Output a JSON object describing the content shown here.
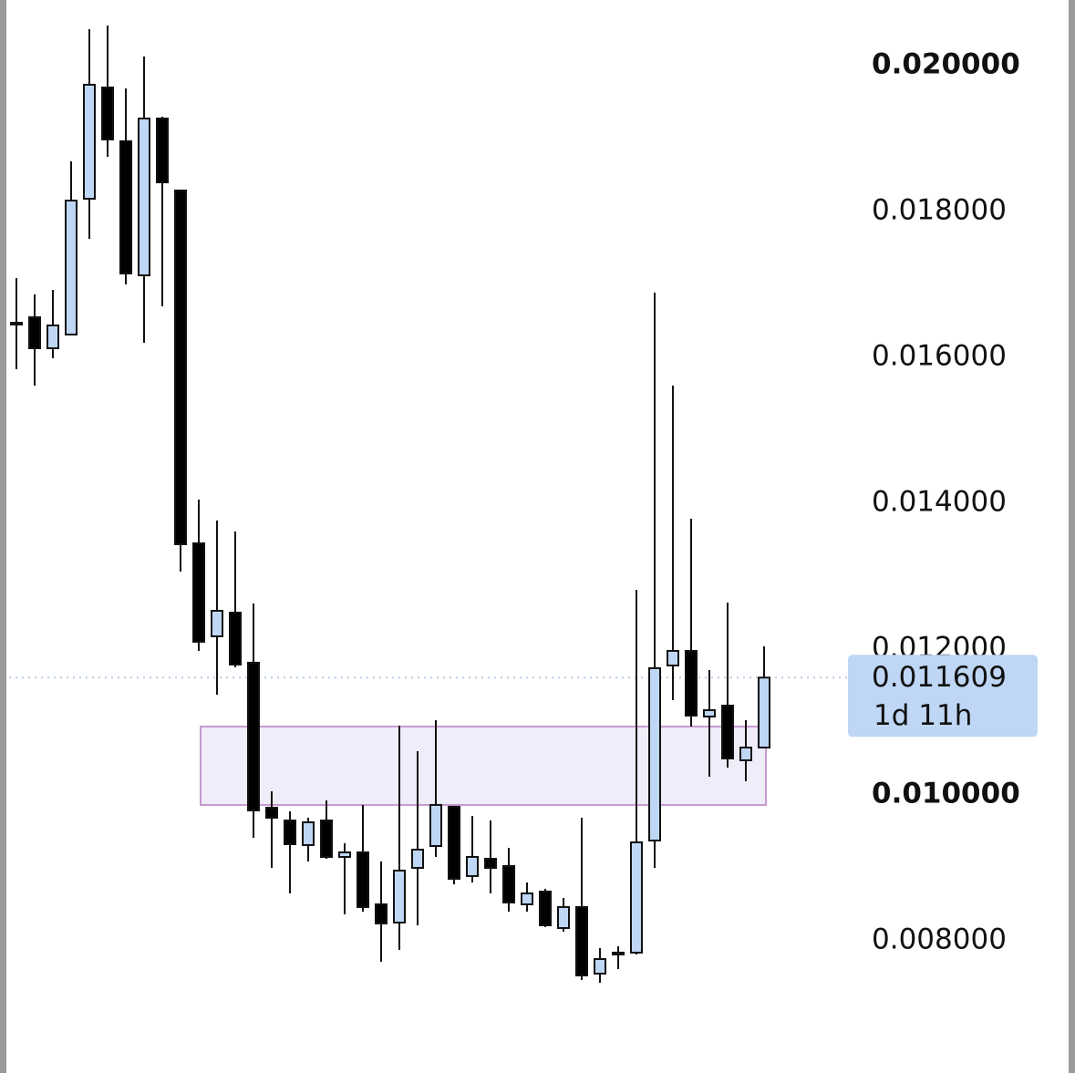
{
  "chart_data": {
    "type": "candlestick",
    "candles": {
      "open": [
        0.016475,
        0.01655,
        0.016125,
        0.016313,
        0.018175,
        0.0197,
        0.018963,
        0.017125,
        0.019275,
        0.018288,
        0.01345,
        0.012175,
        0.0125,
        0.011813,
        0.009825,
        0.00965,
        0.009313,
        0.00965,
        0.00915,
        0.009213,
        0.0085,
        0.00825,
        0.009,
        0.0093,
        0.009838,
        0.008888,
        0.009125,
        0.009025,
        0.0085,
        0.008675,
        0.008175,
        0.008463,
        0.00755,
        0.007838,
        0.007838,
        0.009375,
        0.011775,
        0.011975,
        0.011075,
        0.011225,
        0.010475,
        0.01065
      ],
      "high": [
        0.017088,
        0.016863,
        0.016925,
        0.018688,
        0.0205,
        0.02055,
        0.019688,
        0.020125,
        0.0193,
        0.018288,
        0.01405,
        0.013763,
        0.013613,
        0.012625,
        0.01005,
        0.009775,
        0.009688,
        0.009925,
        0.009338,
        0.009863,
        0.009088,
        0.01095,
        0.0106,
        0.011025,
        0.009838,
        0.009713,
        0.00965,
        0.009275,
        0.0088,
        0.008713,
        0.008588,
        0.009688,
        0.0079,
        0.007925,
        0.012813,
        0.016888,
        0.015613,
        0.013788,
        0.011713,
        0.012638,
        0.011025,
        0.012038
      ],
      "low": [
        0.015838,
        0.015613,
        0.015988,
        0.016313,
        0.017625,
        0.01875,
        0.017,
        0.0162,
        0.0167,
        0.013063,
        0.011975,
        0.011375,
        0.01175,
        0.009413,
        0.009,
        0.00865,
        0.009088,
        0.009125,
        0.008363,
        0.0084,
        0.007713,
        0.007875,
        0.008213,
        0.00915,
        0.008775,
        0.0088,
        0.00865,
        0.0084,
        0.0084,
        0.008188,
        0.008125,
        0.007463,
        0.007425,
        0.007613,
        0.007813,
        0.009,
        0.0113,
        0.010938,
        0.01025,
        0.010375,
        0.010188,
        0.01065
      ],
      "close": [
        0.016463,
        0.016125,
        0.016438,
        0.01815,
        0.019738,
        0.018988,
        0.01715,
        0.019275,
        0.0184,
        0.013438,
        0.0121,
        0.012525,
        0.011788,
        0.009788,
        0.009688,
        0.009325,
        0.009625,
        0.00915,
        0.009213,
        0.008463,
        0.008238,
        0.008963,
        0.00925,
        0.009863,
        0.00885,
        0.00915,
        0.009,
        0.008525,
        0.00865,
        0.008213,
        0.008463,
        0.007525,
        0.00775,
        0.007813,
        0.00935,
        0.011738,
        0.011975,
        0.011088,
        0.011163,
        0.0105,
        0.01065,
        0.011609
      ]
    },
    "up_color": "#bfd7f5",
    "down_color": "#000000",
    "ylim": [
      0.0061875,
      0.0209
    ],
    "yticks": [
      {
        "value": 0.02,
        "label": "0.020000"
      },
      {
        "value": 0.018,
        "label": "0.018000"
      },
      {
        "value": 0.016,
        "label": "0.016000"
      },
      {
        "value": 0.014,
        "label": "0.014000"
      },
      {
        "value": 0.012,
        "label": "0.012000"
      },
      {
        "value": 0.01,
        "label": "0.010000"
      },
      {
        "value": 0.008,
        "label": "0.008000"
      }
    ],
    "zone": {
      "top": 0.010938,
      "bottom": 0.009863,
      "color": "#efedfa",
      "border_color": "#c79ad0"
    },
    "last_price": {
      "value": 0.011609,
      "label": "0.011609"
    },
    "countdown": "1d 11h"
  }
}
